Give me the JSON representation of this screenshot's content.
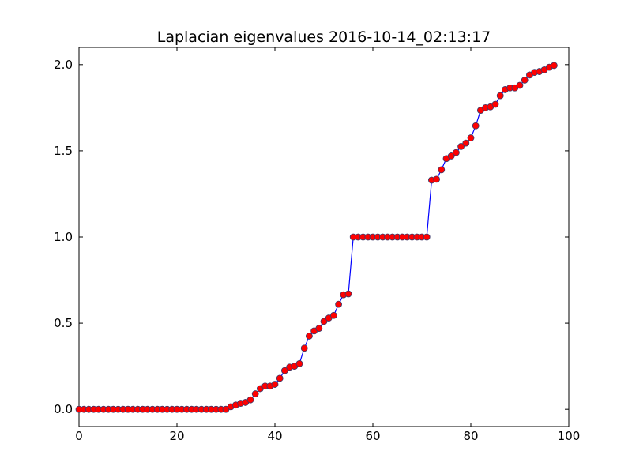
{
  "chart_data": {
    "type": "line",
    "title": "Laplacian eigenvalues 2016-10-14_02:13:17",
    "xlabel": "",
    "ylabel": "",
    "xlim": [
      0,
      100
    ],
    "ylim": [
      -0.1,
      2.1
    ],
    "xticks": [
      0,
      20,
      40,
      60,
      80,
      100
    ],
    "xtick_labels": [
      "0",
      "20",
      "40",
      "60",
      "80",
      "100"
    ],
    "yticks": [
      0.0,
      0.5,
      1.0,
      1.5,
      2.0
    ],
    "ytick_labels": [
      "0.0",
      "0.5",
      "1.0",
      "1.5",
      "2.0"
    ],
    "grid": false,
    "legend": "none",
    "series": [
      {
        "line_color": "#0000ff",
        "marker_color": "#ff0000",
        "marker": "circle",
        "x": [
          0,
          1,
          2,
          3,
          4,
          5,
          6,
          7,
          8,
          9,
          10,
          11,
          12,
          13,
          14,
          15,
          16,
          17,
          18,
          19,
          20,
          21,
          22,
          23,
          24,
          25,
          26,
          27,
          28,
          29,
          30,
          31,
          32,
          33,
          34,
          35,
          36,
          37,
          38,
          39,
          40,
          41,
          42,
          43,
          44,
          45,
          46,
          47,
          48,
          49,
          50,
          51,
          52,
          53,
          54,
          55,
          56,
          57,
          58,
          59,
          60,
          61,
          62,
          63,
          64,
          65,
          66,
          67,
          68,
          69,
          70,
          71,
          72,
          73,
          74,
          75,
          76,
          77,
          78,
          79,
          80,
          81,
          82,
          83,
          84,
          85,
          86,
          87,
          88,
          89,
          90,
          91,
          92,
          93,
          94,
          95,
          96,
          97
        ],
        "values": [
          0,
          0,
          0,
          0,
          0,
          0,
          0,
          0,
          0,
          0,
          0,
          0,
          0,
          0,
          0,
          0,
          0,
          0,
          0,
          0,
          0,
          0,
          0,
          0,
          0,
          0,
          0,
          0,
          0,
          0,
          0,
          0.015,
          0.025,
          0.035,
          0.04,
          0.055,
          0.09,
          0.12,
          0.135,
          0.135,
          0.145,
          0.18,
          0.225,
          0.245,
          0.25,
          0.265,
          0.355,
          0.425,
          0.455,
          0.47,
          0.51,
          0.53,
          0.545,
          0.61,
          0.665,
          0.67,
          1.0,
          1.0,
          1.0,
          1.0,
          1.0,
          1.0,
          1.0,
          1.0,
          1.0,
          1.0,
          1.0,
          1.0,
          1.0,
          1.0,
          1.0,
          1.0,
          1.33,
          1.335,
          1.39,
          1.455,
          1.47,
          1.49,
          1.525,
          1.545,
          1.575,
          1.645,
          1.735,
          1.75,
          1.755,
          1.77,
          1.82,
          1.855,
          1.865,
          1.865,
          1.88,
          1.91,
          1.94,
          1.955,
          1.96,
          1.97,
          1.985,
          1.995
        ]
      }
    ]
  }
}
